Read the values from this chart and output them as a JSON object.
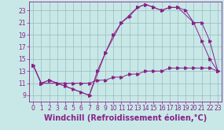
{
  "background_color": "#c8e8e8",
  "grid_color": "#99bbbb",
  "line_color": "#882288",
  "xlabel": "Windchill (Refroidissement éolien,°C)",
  "xlabel_fontsize": 7,
  "xlim": [
    -0.5,
    23.5
  ],
  "ylim": [
    8.0,
    24.5
  ],
  "yticks": [
    9,
    11,
    13,
    15,
    17,
    19,
    21,
    23
  ],
  "xticks": [
    0,
    1,
    2,
    3,
    4,
    5,
    6,
    7,
    8,
    9,
    10,
    11,
    12,
    13,
    14,
    15,
    16,
    17,
    18,
    19,
    20,
    21,
    22,
    23
  ],
  "line1_x": [
    0,
    1,
    2,
    3,
    4,
    5,
    6,
    7,
    8,
    9,
    10,
    11,
    12,
    13,
    14,
    15,
    16,
    17,
    18,
    19,
    20,
    21,
    22,
    23
  ],
  "line1_y": [
    14.0,
    11.0,
    11.5,
    11.0,
    10.5,
    10.0,
    9.5,
    9.0,
    13.0,
    16.0,
    19.0,
    21.0,
    22.0,
    23.5,
    24.0,
    23.5,
    23.0,
    23.5,
    23.5,
    23.0,
    21.0,
    18.0,
    15.0,
    13.0
  ],
  "line2_x": [
    0,
    1,
    2,
    3,
    4,
    5,
    6,
    7,
    8,
    9,
    10,
    11,
    12,
    13,
    14,
    15,
    16,
    17,
    18,
    19,
    20,
    21,
    22,
    23
  ],
  "line2_y": [
    14.0,
    11.0,
    11.5,
    11.0,
    11.0,
    11.0,
    11.0,
    11.0,
    11.5,
    11.5,
    12.0,
    12.0,
    12.5,
    12.5,
    13.0,
    13.0,
    13.0,
    13.5,
    13.5,
    13.5,
    13.5,
    13.5,
    13.5,
    13.0
  ],
  "line3_x": [
    0,
    1,
    3,
    7,
    9,
    11,
    13,
    14,
    15,
    16,
    17,
    18,
    20,
    21,
    22,
    23
  ],
  "line3_y": [
    14.0,
    11.0,
    11.0,
    9.0,
    16.0,
    21.0,
    23.5,
    24.0,
    23.5,
    23.0,
    23.5,
    23.5,
    21.0,
    21.0,
    18.0,
    13.0
  ],
  "tick_fontsize": 5.5,
  "marker_size": 2.5,
  "linewidth": 0.7
}
